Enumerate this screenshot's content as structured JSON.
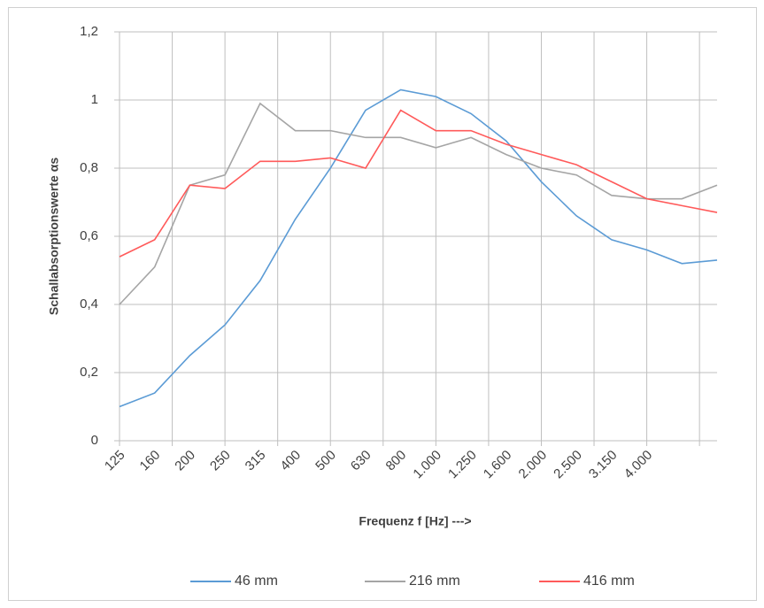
{
  "chart_data": {
    "type": "line",
    "y_label": "Schallabsorptionswerte  αs",
    "x_label": "Frequenz f  [Hz]  --->",
    "categories": [
      "125",
      "160",
      "200",
      "250",
      "315",
      "400",
      "500",
      "630",
      "800",
      "1.000",
      "1.250",
      "1.600",
      "2.000",
      "2.500",
      "3.150",
      "4.000",
      null,
      null
    ],
    "series": [
      {
        "name": "46 mm",
        "color": "#5b9bd5",
        "values": [
          0.1,
          0.14,
          0.25,
          0.34,
          0.47,
          0.65,
          0.8,
          0.97,
          1.03,
          1.01,
          0.96,
          0.88,
          0.76,
          0.66,
          0.59,
          0.56,
          0.52,
          0.53
        ]
      },
      {
        "name": "216 mm",
        "color": "#a5a5a5",
        "values": [
          0.4,
          0.51,
          0.75,
          0.78,
          0.99,
          0.91,
          0.91,
          0.89,
          0.89,
          0.86,
          0.89,
          0.84,
          0.8,
          0.78,
          0.72,
          0.71,
          0.71,
          0.75
        ]
      },
      {
        "name": "416 mm",
        "color": "#ff5a5a",
        "values": [
          0.54,
          0.59,
          0.75,
          0.74,
          0.82,
          0.82,
          0.83,
          0.8,
          0.97,
          0.91,
          0.91,
          0.87,
          0.84,
          0.81,
          0.76,
          0.71,
          0.69,
          0.67
        ]
      }
    ],
    "ylim": [
      0,
      1.2
    ],
    "yticks": [
      0,
      {
        "value": 0.2,
        "label": "0,2"
      },
      {
        "value": 0.4,
        "label": "0,4"
      },
      {
        "value": 0.6,
        "label": "0,6"
      },
      {
        "value": 0.8,
        "label": "0,8"
      },
      1,
      {
        "value": 1.2,
        "label": "1,2"
      }
    ],
    "grid": true,
    "legend": "bottom"
  }
}
